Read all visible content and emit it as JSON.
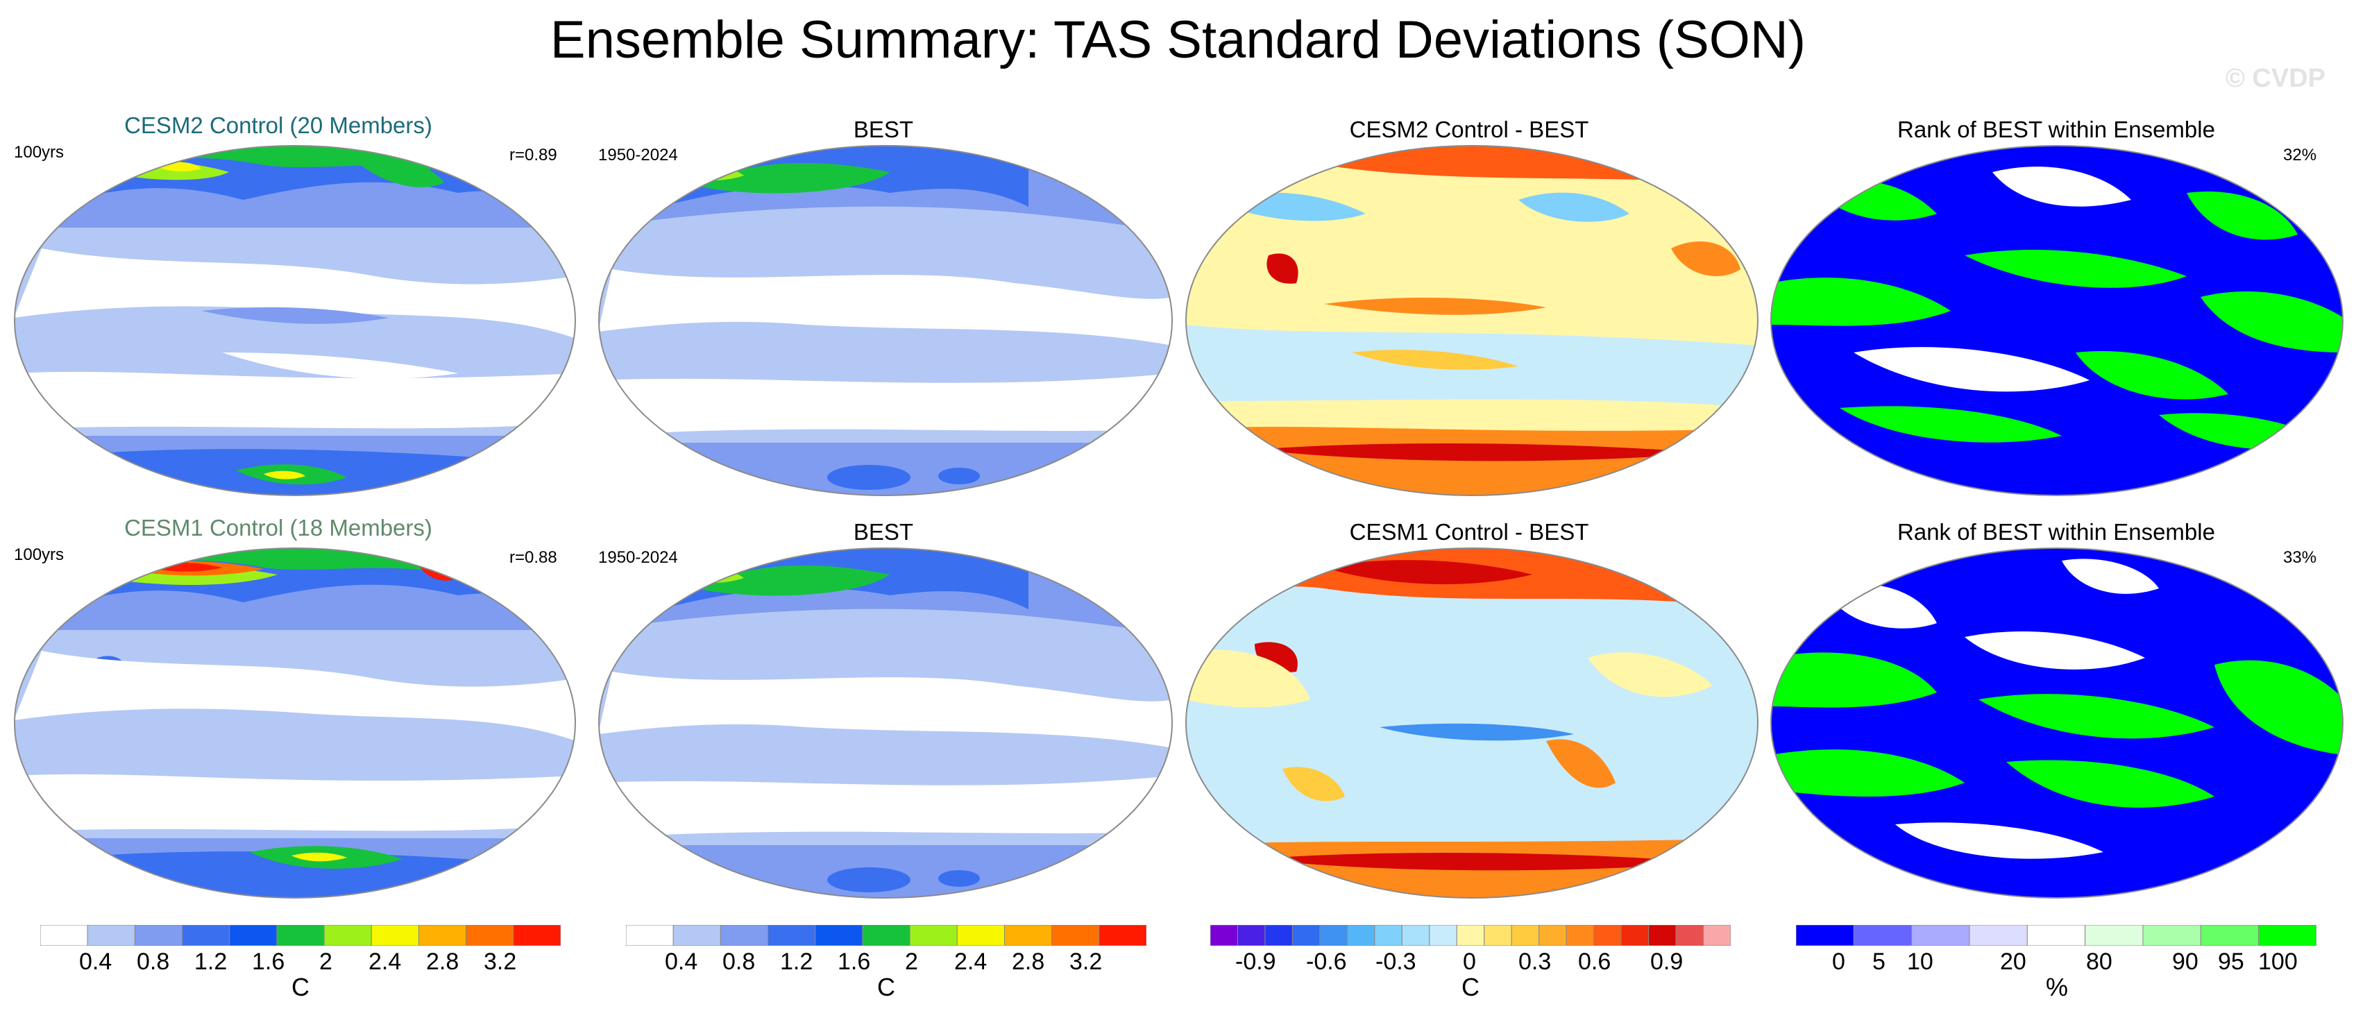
{
  "title": "Ensemble Summary: TAS Standard Deviations (SON)",
  "watermark": "© CVDP",
  "colors": {
    "teal_title": "#1b6b7a",
    "sage_title": "#5f8a6a",
    "sd_scale": [
      "#ffffff",
      "#b4c8f5",
      "#7f9cf0",
      "#3a6ff0",
      "#0b57f0",
      "#16c23c",
      "#9ef01a",
      "#f7f700",
      "#ffb000",
      "#ff7000",
      "#ff1a00"
    ],
    "diff_scale": [
      "#7b00d6",
      "#4a1fe6",
      "#2238f0",
      "#2f6cf0",
      "#3f91f2",
      "#55b6f7",
      "#7fd0fb",
      "#a9e0fb",
      "#c9ecfb",
      "#fff6a8",
      "#ffe36b",
      "#ffcb3f",
      "#ffae2b",
      "#ff8a1c",
      "#ff5b12",
      "#f02a0b",
      "#d40606",
      "#e85050",
      "#f8a8a8"
    ],
    "rank_scale": [
      "#0000ff",
      "#6666ff",
      "#aaaaff",
      "#ddddff",
      "#ffffff",
      "#ddffdd",
      "#aaffaa",
      "#66ff66",
      "#00ff00"
    ]
  },
  "rows": [
    {
      "model_title": "CESM2 Control (20 Members)",
      "model_left_label": "100yrs",
      "model_right_label": "r=0.89",
      "obs_title": "BEST",
      "obs_left_label": "1950-2024",
      "diff_title": "CESM2 Control - BEST",
      "rank_title": "Rank of BEST within Ensemble",
      "rank_right_label": "32%"
    },
    {
      "model_title": "CESM1 Control (18 Members)",
      "model_left_label": "100yrs",
      "model_right_label": "r=0.88",
      "obs_title": "BEST",
      "obs_left_label": "1950-2024",
      "diff_title": "CESM1 Control - BEST",
      "rank_title": "Rank of BEST within Ensemble",
      "rank_right_label": "33%"
    }
  ],
  "colorbars": [
    {
      "name": "sd",
      "ticks": [
        "0.4",
        "0.8",
        "1.2",
        "1.6",
        "2",
        "2.4",
        "2.8",
        "3.2"
      ],
      "unit": "C"
    },
    {
      "name": "sd-obs",
      "ticks": [
        "0.4",
        "0.8",
        "1.2",
        "1.6",
        "2",
        "2.4",
        "2.8",
        "3.2"
      ],
      "unit": "C"
    },
    {
      "name": "diff",
      "ticks": [
        "-0.9",
        "-0.6",
        "-0.3",
        "0",
        "0.3",
        "0.6",
        "0.9"
      ],
      "unit": "C"
    },
    {
      "name": "rank",
      "ticks": [
        "0",
        "5",
        "10",
        "20",
        "80",
        "90",
        "95",
        "100"
      ],
      "unit": "%"
    }
  ]
}
